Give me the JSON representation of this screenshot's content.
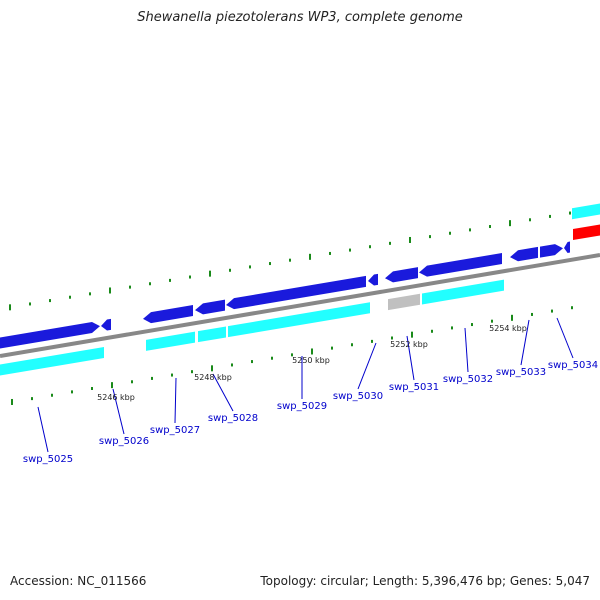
{
  "title": "Shewanella piezotolerans WP3, complete genome",
  "accession": "Accession: NC_011566",
  "summary": "Topology: circular; Length: 5,396,476 bp; Genes: 5,047",
  "colors": {
    "forward_gene": "#1a1adc",
    "cds": "#22ffff",
    "pseudo": "#c0c0c0",
    "rna": "#ff0000",
    "backbone": "#888888",
    "tick": "#1a8a1a",
    "label": "#0000cc"
  },
  "kbp_labels": [
    "5246 kbp",
    "5248 kbp",
    "5250 kbp",
    "5252 kbp",
    "5254 kbp"
  ],
  "genes": [
    "swp_5025",
    "swp_5026",
    "swp_5027",
    "swp_5028",
    "swp_5029",
    "swp_5030",
    "swp_5031",
    "swp_5032",
    "swp_5033",
    "swp_5034"
  ]
}
